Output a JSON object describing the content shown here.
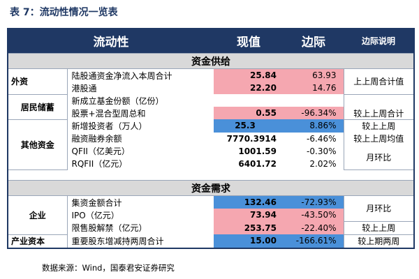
{
  "title": "表 7：流动性情况一览表",
  "colors": {
    "header": "#1f3864",
    "band": "#d9d9d9",
    "pink": "#f5a7b0",
    "blue": "#4a90d9"
  },
  "header": {
    "col1": "流动性",
    "col2": "现值",
    "col3": "边际",
    "col4": "边际说明"
  },
  "supply": {
    "title": "资金供给",
    "groups": [
      {
        "name": "外资",
        "rows": [
          {
            "item": "陆股通资金净流入本周合计",
            "value": "25.84",
            "margin": "63.93",
            "note": "上上周合计值"
          },
          {
            "item": "港股通",
            "value": "22.20",
            "margin": "14.76",
            "note": ""
          }
        ]
      },
      {
        "name": "居民储蓄",
        "rows": [
          {
            "item": "新成立基金份额（亿份）",
            "value": "",
            "margin": "",
            "note": ""
          },
          {
            "item": "股票+混合型周总和",
            "value": "0.55",
            "margin": "-96.34%",
            "note": "较上上周合计"
          }
        ]
      },
      {
        "name": "其他资金",
        "rows": [
          {
            "item": "新增投资者（万人）",
            "value": "25.3",
            "margin": "8.86%",
            "note": "较上上周"
          },
          {
            "item": "融资融券余额",
            "value": "7770.3914",
            "margin": "-6.46%",
            "note": "较上上周均值"
          },
          {
            "item": "QFII（亿美元）",
            "value": "1001.59",
            "margin": "-0.30%",
            "note": "月环比"
          },
          {
            "item": "RQFII（亿元）",
            "value": "6401.72",
            "margin": "2.02%",
            "note": ""
          }
        ]
      }
    ]
  },
  "demand": {
    "title": "资金需求",
    "groups": [
      {
        "name": "企业",
        "rows": [
          {
            "item": "集资金额合计",
            "value": "132.46",
            "margin": "-72.93%",
            "note": "月环比"
          },
          {
            "item": "IPO（亿元）",
            "value": "73.94",
            "margin": "-43.50%",
            "note": ""
          },
          {
            "item": "限售股解禁（亿元）",
            "value": "253.75",
            "margin": "-22.40%",
            "note": "较上上周"
          }
        ]
      },
      {
        "name": "产业资本",
        "rows": [
          {
            "item": "重要股东增减持两周合计",
            "value": "15.00",
            "margin": "-166.61%",
            "note": "较上期两周"
          }
        ]
      }
    ]
  },
  "source": "数据来源：Wind，国泰君安证券研究"
}
